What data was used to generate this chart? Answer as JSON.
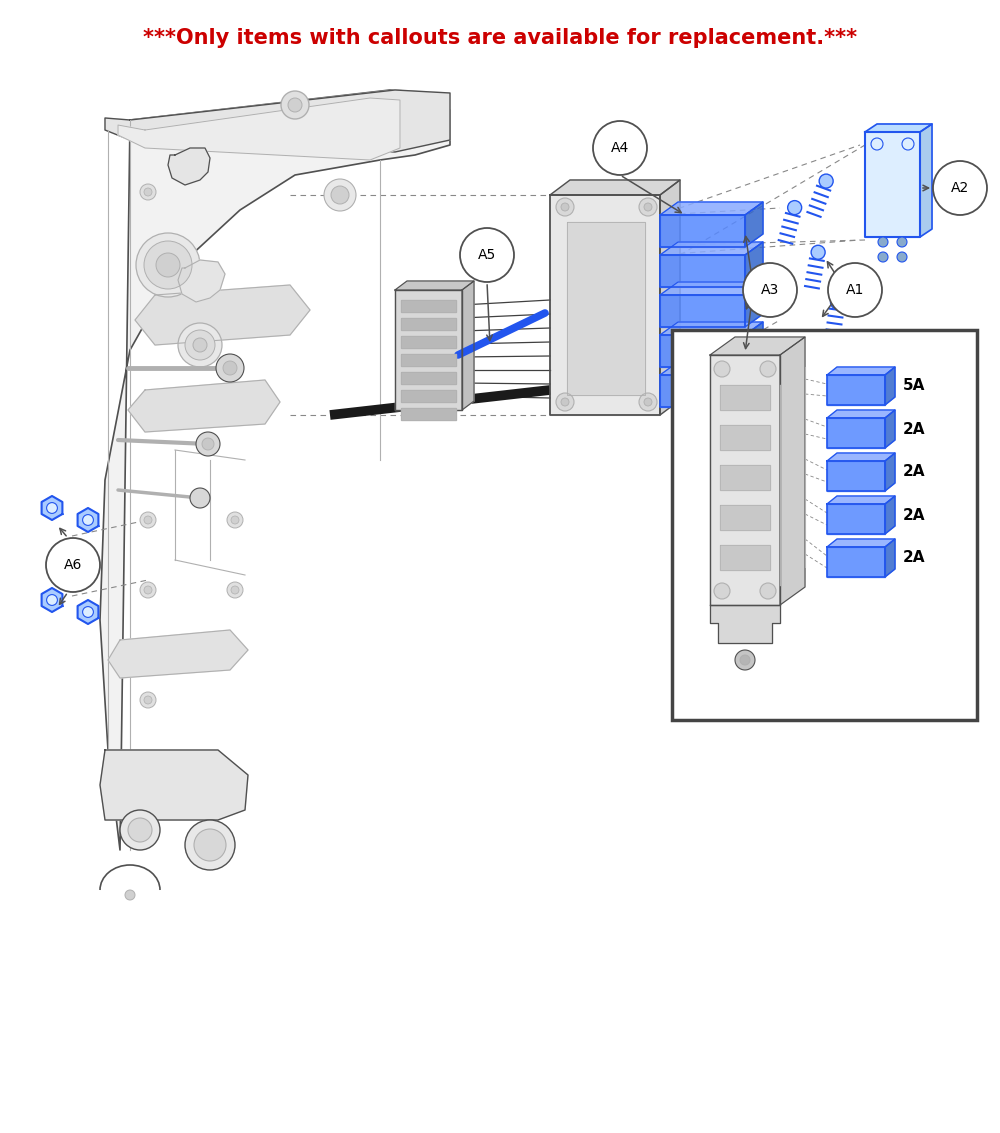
{
  "title": "***Only items with callouts are available for replacement.***",
  "title_color": "#cc0000",
  "title_fontsize": 15,
  "background_color": "#ffffff",
  "callout_labels": [
    "A1",
    "A2",
    "A3",
    "A4",
    "A5",
    "A6"
  ],
  "fuse_labels": [
    "5A",
    "2A",
    "2A",
    "2A",
    "2A"
  ],
  "line_color": "#505050",
  "blue_color": "#2255ee",
  "light_gray": "#e8e8e8",
  "mid_gray": "#b0b0b0",
  "dark_gray": "#707070",
  "chassis_fill": "#f2f2f2",
  "chassis_inner": "#e5e5e5"
}
